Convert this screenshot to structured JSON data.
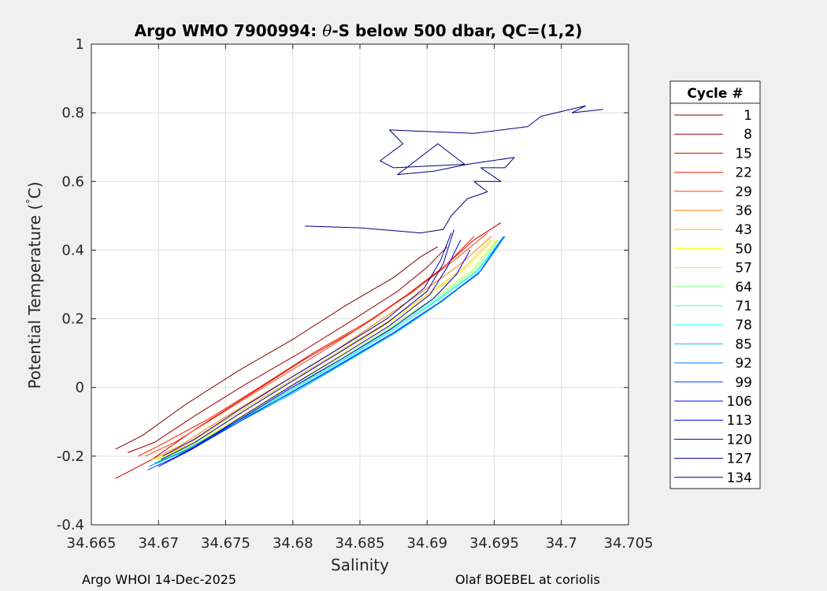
{
  "chart_data": {
    "type": "line",
    "title_prefix": "Argo WMO 7900994: ",
    "title_symbol": "θ",
    "title_suffix": "-S below 500 dbar,  QC=(1,2)",
    "xlabel": "Salinity",
    "ylabel_main": "Potential Temperature (",
    "ylabel_degree": "°",
    "ylabel_unit": "C)",
    "xlim": [
      34.665,
      34.705
    ],
    "ylim": [
      -0.4,
      1.0
    ],
    "x_ticks": [
      34.665,
      34.67,
      34.675,
      34.68,
      34.685,
      34.69,
      34.695,
      34.7,
      34.705
    ],
    "x_tick_labels": [
      "34.665",
      "34.67",
      "34.675",
      "34.68",
      "34.685",
      "34.69",
      "34.695",
      "34.7",
      "34.705"
    ],
    "y_ticks": [
      -0.4,
      -0.2,
      0,
      0.2,
      0.4,
      0.6,
      0.8,
      1.0
    ],
    "y_tick_labels": [
      "-0.4",
      "-0.2",
      "0",
      "0.2",
      "0.4",
      "0.6",
      "0.8",
      "1"
    ],
    "grid": true,
    "legend_title": "Cycle #",
    "legend_position": "right-outside",
    "series": [
      {
        "name": "1",
        "color": "#7f0000",
        "x": [
          34.6668,
          34.6688,
          34.672,
          34.676,
          34.68,
          34.684,
          34.6875,
          34.6895,
          34.6908
        ],
        "y": [
          -0.18,
          -0.14,
          -0.05,
          0.05,
          0.14,
          0.24,
          0.32,
          0.38,
          0.41
        ]
      },
      {
        "name": "8",
        "color": "#a00000",
        "x": [
          34.6677,
          34.6697,
          34.6728,
          34.6765,
          34.6805,
          34.6842,
          34.6878,
          34.69,
          34.6915
        ],
        "y": [
          -0.19,
          -0.16,
          -0.08,
          0.01,
          0.1,
          0.19,
          0.28,
          0.35,
          0.41
        ]
      },
      {
        "name": "15",
        "color": "#d00000",
        "x": [
          34.6668,
          34.6695,
          34.6728,
          34.6768,
          34.6808,
          34.6848,
          34.6885,
          34.6912,
          34.6935,
          34.6955
        ],
        "y": [
          -0.265,
          -0.21,
          -0.12,
          -0.02,
          0.08,
          0.17,
          0.27,
          0.35,
          0.43,
          0.48
        ]
      },
      {
        "name": "22",
        "color": "#ff1a00",
        "x": [
          34.6685,
          34.6705,
          34.6738,
          34.6775,
          34.6815,
          34.6855,
          34.689,
          34.6915,
          34.6935
        ],
        "y": [
          -0.2,
          -0.16,
          -0.09,
          0.0,
          0.1,
          0.19,
          0.28,
          0.36,
          0.44
        ]
      },
      {
        "name": "29",
        "color": "#ff4000",
        "x": [
          34.669,
          34.6712,
          34.6745,
          34.6782,
          34.682,
          34.686,
          34.6893,
          34.692,
          34.6945
        ],
        "y": [
          -0.2,
          -0.16,
          -0.08,
          0.01,
          0.1,
          0.2,
          0.29,
          0.37,
          0.45
        ]
      },
      {
        "name": "36",
        "color": "#ff8000",
        "x": [
          34.6695,
          34.6716,
          34.6748,
          34.6786,
          34.6825,
          34.6863,
          34.6897,
          34.6925,
          34.6948
        ],
        "y": [
          -0.21,
          -0.17,
          -0.09,
          0.0,
          0.09,
          0.19,
          0.28,
          0.36,
          0.44
        ]
      },
      {
        "name": "43",
        "color": "#ffbf00",
        "x": [
          34.6698,
          34.672,
          34.6752,
          34.679,
          34.6828,
          34.6866,
          34.69,
          34.6928,
          34.6948
        ],
        "y": [
          -0.21,
          -0.17,
          -0.09,
          0.0,
          0.09,
          0.18,
          0.27,
          0.35,
          0.43
        ]
      },
      {
        "name": "50",
        "color": "#ffff00",
        "x": [
          34.6698,
          34.6722,
          34.6755,
          34.6792,
          34.683,
          34.6868,
          34.6902,
          34.693,
          34.695
        ],
        "y": [
          -0.21,
          -0.17,
          -0.1,
          -0.01,
          0.08,
          0.18,
          0.27,
          0.35,
          0.43
        ]
      },
      {
        "name": "57",
        "color": "#bfff40",
        "x": [
          34.67,
          34.6724,
          34.6757,
          34.6795,
          34.6833,
          34.687,
          34.6905,
          34.6933,
          34.6952
        ],
        "y": [
          -0.21,
          -0.17,
          -0.1,
          -0.01,
          0.08,
          0.17,
          0.26,
          0.34,
          0.43
        ]
      },
      {
        "name": "64",
        "color": "#80ff80",
        "x": [
          34.67,
          34.6725,
          34.6758,
          34.6797,
          34.6835,
          34.6872,
          34.6907,
          34.6935,
          34.6953
        ],
        "y": [
          -0.215,
          -0.17,
          -0.1,
          -0.01,
          0.08,
          0.17,
          0.26,
          0.34,
          0.43
        ]
      },
      {
        "name": "71",
        "color": "#40ffbf",
        "x": [
          34.67,
          34.6726,
          34.676,
          34.6798,
          34.6837,
          34.6874,
          34.6909,
          34.6937,
          34.6955
        ],
        "y": [
          -0.22,
          -0.17,
          -0.1,
          -0.01,
          0.08,
          0.17,
          0.26,
          0.34,
          0.43
        ]
      },
      {
        "name": "78",
        "color": "#00ffff",
        "x": [
          34.6698,
          34.6725,
          34.676,
          34.6798,
          34.6838,
          34.6876,
          34.691,
          34.6938,
          34.6957
        ],
        "y": [
          -0.22,
          -0.18,
          -0.1,
          -0.01,
          0.08,
          0.17,
          0.26,
          0.34,
          0.44
        ]
      },
      {
        "name": "85",
        "color": "#00bfff",
        "x": [
          34.6697,
          34.6724,
          34.676,
          34.6799,
          34.6838,
          34.6877,
          34.6911,
          34.694,
          34.6958
        ],
        "y": [
          -0.22,
          -0.18,
          -0.1,
          -0.02,
          0.07,
          0.16,
          0.25,
          0.34,
          0.44
        ]
      },
      {
        "name": "92",
        "color": "#0080ff",
        "x": [
          34.6693,
          34.6722,
          34.6758,
          34.6797,
          34.6837,
          34.6876,
          34.691,
          34.694,
          34.6958
        ],
        "y": [
          -0.23,
          -0.18,
          -0.1,
          -0.02,
          0.07,
          0.16,
          0.25,
          0.34,
          0.44
        ]
      },
      {
        "name": "99",
        "color": "#0040ff",
        "x": [
          34.6692,
          34.672,
          34.6756,
          34.6796,
          34.6836,
          34.6875,
          34.691,
          34.6938,
          34.6957
        ],
        "y": [
          -0.24,
          -0.19,
          -0.11,
          -0.02,
          0.07,
          0.16,
          0.25,
          0.33,
          0.44
        ]
      },
      {
        "name": "106",
        "color": "#0000ff",
        "x": [
          34.67,
          34.6725,
          34.6758,
          34.6795,
          34.6835,
          34.6873,
          34.6905,
          34.6922,
          34.6932
        ],
        "y": [
          -0.23,
          -0.18,
          -0.1,
          -0.01,
          0.08,
          0.17,
          0.26,
          0.33,
          0.4
        ]
      },
      {
        "name": "113",
        "color": "#0000df",
        "x": [
          34.6705,
          34.6728,
          34.676,
          34.6797,
          34.6835,
          34.6872,
          34.6902,
          34.6915,
          34.6925
        ],
        "y": [
          -0.22,
          -0.17,
          -0.09,
          0.0,
          0.09,
          0.18,
          0.27,
          0.35,
          0.43
        ]
      },
      {
        "name": "120",
        "color": "#0000bf",
        "x": [
          34.6702,
          34.6727,
          34.6759,
          34.6796,
          34.6834,
          34.6871,
          34.69,
          34.6912,
          34.692
        ],
        "y": [
          -0.21,
          -0.16,
          -0.08,
          0.01,
          0.1,
          0.19,
          0.28,
          0.36,
          0.46
        ]
      },
      {
        "name": "127",
        "color": "#00009f",
        "x": [
          34.6703,
          34.6727,
          34.6758,
          34.6795,
          34.6833,
          34.687,
          34.6898,
          34.691,
          34.6918
        ],
        "y": [
          -0.2,
          -0.15,
          -0.07,
          0.02,
          0.11,
          0.2,
          0.29,
          0.37,
          0.45
        ]
      },
      {
        "name": "134",
        "color": "#00007f",
        "x": [
          34.6809,
          34.685,
          34.6895,
          34.6912,
          34.6918,
          34.693,
          34.6945,
          34.6935,
          34.6955,
          34.694,
          34.6958,
          34.6965,
          34.693,
          34.6905,
          34.6878,
          34.6908,
          34.6928,
          34.6875,
          34.6865,
          34.6882,
          34.6872,
          34.6935,
          34.6975,
          34.6985,
          34.7018,
          34.7008,
          34.7031
        ],
        "y": [
          0.47,
          0.465,
          0.45,
          0.46,
          0.5,
          0.55,
          0.57,
          0.6,
          0.6,
          0.64,
          0.64,
          0.67,
          0.65,
          0.63,
          0.62,
          0.71,
          0.65,
          0.64,
          0.66,
          0.71,
          0.75,
          0.74,
          0.76,
          0.79,
          0.82,
          0.8,
          0.81
        ]
      }
    ]
  },
  "footer": {
    "left": "Argo WHOI 14-Dec-2025",
    "right": "Olaf BOEBEL at coriolis"
  }
}
